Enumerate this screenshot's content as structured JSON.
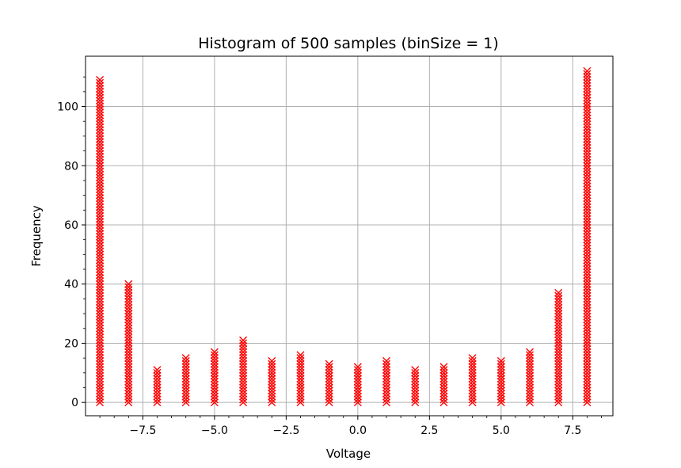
{
  "chart_data": {
    "type": "scatter",
    "title": "Histogram of 500 samples (binSize = 1)",
    "xlabel": "Voltage",
    "ylabel": "Frequency",
    "xlim": [
      -9.5,
      8.9
    ],
    "ylim": [
      -4.5,
      117
    ],
    "x_ticks": [
      -7.5,
      -5.0,
      -2.5,
      0.0,
      2.5,
      5.0,
      7.5
    ],
    "x_tick_labels": [
      "−7.5",
      "−5.0",
      "−2.5",
      "0.0",
      "2.5",
      "5.0",
      "7.5"
    ],
    "y_ticks": [
      0,
      20,
      40,
      60,
      80,
      100
    ],
    "y_tick_labels": [
      "0",
      "20",
      "40",
      "60",
      "80",
      "100"
    ],
    "grid": true,
    "marker": "x",
    "series": [
      {
        "color": "#ff0000",
        "bins": [
          {
            "x": -9,
            "count": 109
          },
          {
            "x": -8,
            "count": 40
          },
          {
            "x": -7,
            "count": 11
          },
          {
            "x": -6,
            "count": 15
          },
          {
            "x": -5,
            "count": 17
          },
          {
            "x": -4,
            "count": 21
          },
          {
            "x": -3,
            "count": 14
          },
          {
            "x": -2,
            "count": 16
          },
          {
            "x": -1,
            "count": 13
          },
          {
            "x": 0,
            "count": 12
          },
          {
            "x": 1,
            "count": 14
          },
          {
            "x": 2,
            "count": 11
          },
          {
            "x": 3,
            "count": 12
          },
          {
            "x": 4,
            "count": 15
          },
          {
            "x": 5,
            "count": 14
          },
          {
            "x": 6,
            "count": 17
          },
          {
            "x": 7,
            "count": 37
          },
          {
            "x": 8,
            "count": 112
          }
        ]
      }
    ]
  }
}
